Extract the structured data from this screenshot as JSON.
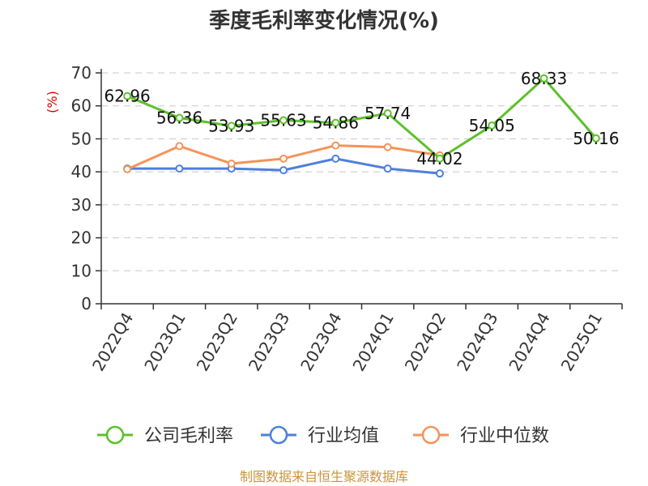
{
  "chart_data": {
    "type": "line",
    "title": "季度毛利率变化情况(%)",
    "ylabel": "(%)",
    "categories": [
      "2022Q4",
      "2023Q1",
      "2023Q2",
      "2023Q3",
      "2023Q4",
      "2024Q1",
      "2024Q2",
      "2024Q3",
      "2024Q4",
      "2025Q1"
    ],
    "ylim": [
      0,
      70
    ],
    "yticks": [
      0,
      10,
      20,
      30,
      40,
      50,
      60,
      70
    ],
    "grid": true,
    "legend_position": "bottom",
    "series": [
      {
        "name": "公司毛利率",
        "color": "#5cc12a",
        "labels": true,
        "values": [
          62.96,
          56.36,
          53.93,
          55.63,
          54.86,
          57.74,
          44.02,
          54.05,
          68.33,
          50.16
        ],
        "label_text": [
          "62.96",
          "56.36",
          "53.93",
          "55.63",
          "54.86",
          "57.74",
          "44.02",
          "54.05",
          "68.33",
          "50.16"
        ]
      },
      {
        "name": "行业均值",
        "color": "#4f7fdc",
        "labels": false,
        "values": [
          41.0,
          41.0,
          41.0,
          40.5,
          44.0,
          41.0,
          39.5,
          null,
          null,
          null
        ]
      },
      {
        "name": "行业中位数",
        "color": "#f5935a",
        "labels": false,
        "values": [
          40.8,
          47.8,
          42.5,
          44.0,
          48.0,
          47.5,
          45.0,
          null,
          null,
          null
        ]
      }
    ]
  },
  "footer": {
    "source": "制图数据来自恒生聚源数据库"
  }
}
